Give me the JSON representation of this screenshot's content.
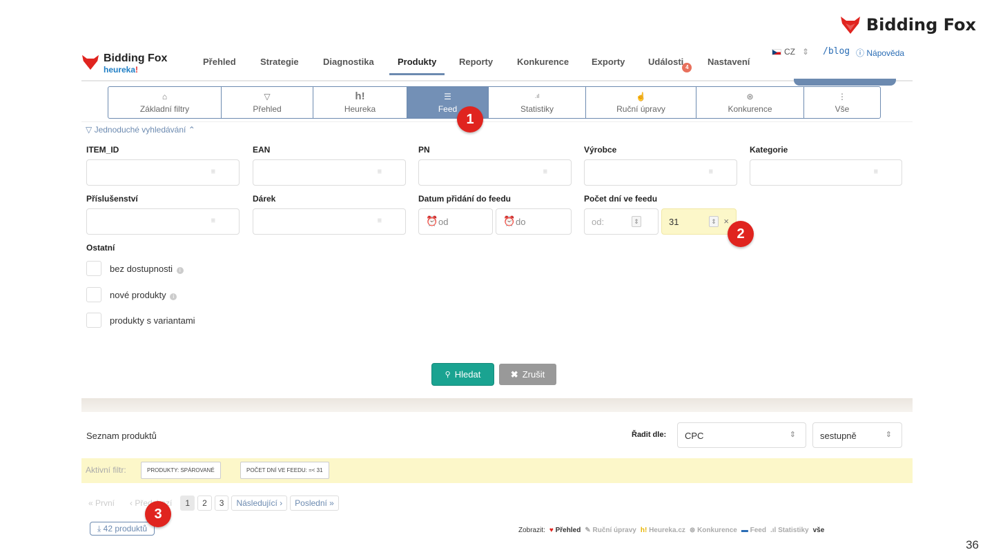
{
  "corner_brand": "Bidding Fox",
  "logo": {
    "name": "Bidding Fox",
    "sub_blue": "heureka",
    "sub_red": "!"
  },
  "nav": {
    "items": [
      "Přehled",
      "Strategie",
      "Diagnostika",
      "Produkty",
      "Reporty",
      "Konkurence",
      "Exporty",
      "Události",
      "Nastavení"
    ],
    "active": "Produkty",
    "events_badge": "4",
    "lang": "CZ",
    "blog": "/blog",
    "help": "Nápověda"
  },
  "tabs": [
    {
      "label": "Základní filtry",
      "icon": "⌂"
    },
    {
      "label": "Přehled",
      "icon": "▽"
    },
    {
      "label": "Heureka",
      "icon": "h!"
    },
    {
      "label": "Feed",
      "icon": "☰"
    },
    {
      "label": "Statistiky",
      "icon": ".ıl"
    },
    {
      "label": "Ruční úpravy",
      "icon": "☝"
    },
    {
      "label": "Konkurence",
      "icon": "⊛"
    },
    {
      "label": "Vše",
      "icon": "⋮"
    }
  ],
  "simple_search": "Jednoduché vyhledávání",
  "filters": {
    "item_id": "ITEM_ID",
    "ean": "EAN",
    "pn": "PN",
    "vyrobce": "Výrobce",
    "kategorie": "Kategorie",
    "prislusenstvi": "Příslušenství",
    "darek": "Dárek",
    "datum": "Datum přidání do feedu",
    "pocet": "Počet dní ve feedu",
    "date_from_placeholder": "od",
    "date_to_placeholder": "do",
    "days_from_placeholder": "od:",
    "days_to_value": "31"
  },
  "ostatni": {
    "title": "Ostatní",
    "options": [
      "bez dostupnosti",
      "nové produkty",
      "produkty s variantami"
    ]
  },
  "buttons": {
    "search": "Hledat",
    "cancel": "Zrušit"
  },
  "list": {
    "title": "Seznam produktů",
    "sort_label": "Řadit dle:",
    "sort_by": "CPC",
    "sort_dir": "sestupně"
  },
  "active_filter": {
    "label": "Aktivní filtr:",
    "chips": [
      "PRODUKTY: SPÁROVANÉ",
      "POČET DNÍ VE FEEDU: =< 31"
    ]
  },
  "pager": {
    "first": "« První",
    "prev": "‹ Předchozí",
    "pages": [
      "1",
      "2",
      "3"
    ],
    "next": "Následující ›",
    "last": "Poslední »"
  },
  "download": "42 produktů",
  "show": {
    "label": "Zobrazit:",
    "options": [
      "Přehled",
      "Ruční úpravy",
      "Heureka.cz",
      "Konkurence",
      "Feed",
      "Statistiky",
      "vše"
    ]
  },
  "markers": [
    "1",
    "2",
    "3"
  ],
  "page_number": "36",
  "colors": {
    "accent": "#7390b6",
    "primary_button": "#1aa391",
    "marker": "#e0241f",
    "highlight": "#fcf7c9"
  }
}
